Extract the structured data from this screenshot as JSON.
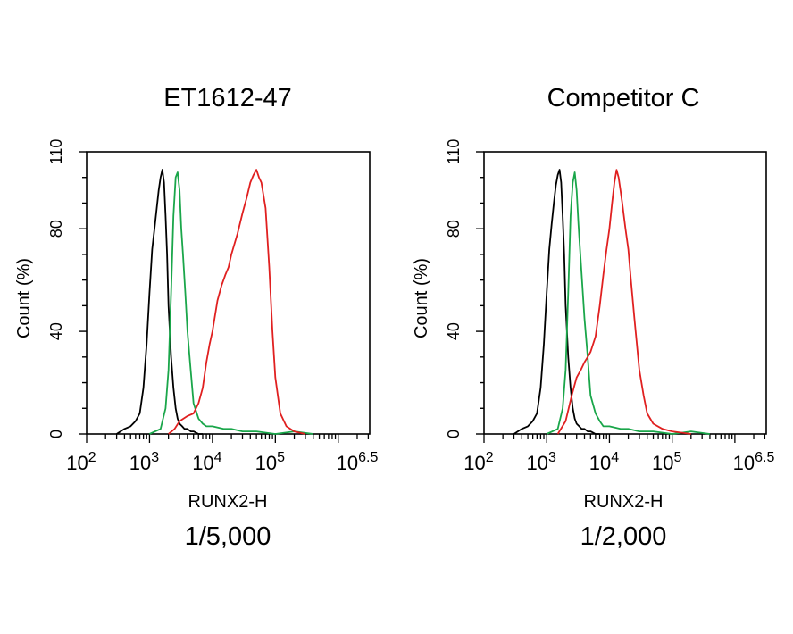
{
  "chart_data": [
    {
      "type": "line",
      "title": "ET1612-47",
      "xlabel": "RUNX2-H",
      "ylabel": "Count (%)",
      "caption": "1/5,000",
      "x_scale": "log10",
      "xlim": [
        100,
        3162278
      ],
      "ylim": [
        0,
        110
      ],
      "x_ticks": [
        {
          "value": 100,
          "base": "10",
          "exp": "2"
        },
        {
          "value": 1000,
          "base": "10",
          "exp": "3"
        },
        {
          "value": 10000,
          "base": "10",
          "exp": "4"
        },
        {
          "value": 100000,
          "base": "10",
          "exp": "5"
        },
        {
          "value": 3162278,
          "base": "10",
          "exp": "6.5"
        }
      ],
      "y_ticks": [
        0,
        40,
        80,
        110
      ],
      "series": [
        {
          "color": "#000000",
          "x": [
            300,
            400,
            500,
            600,
            700,
            800,
            900,
            1000,
            1100,
            1200,
            1300,
            1400,
            1500,
            1600,
            1700,
            1800,
            1900,
            2000,
            2200,
            2400,
            2600,
            2800,
            3000,
            3300,
            3600,
            4000,
            4500,
            5000,
            6000,
            7000
          ],
          "y": [
            0,
            2,
            3,
            5,
            8,
            18,
            35,
            55,
            72,
            80,
            88,
            95,
            100,
            103,
            98,
            85,
            70,
            50,
            30,
            18,
            10,
            6,
            4,
            3,
            2,
            2,
            1,
            1,
            0,
            0
          ]
        },
        {
          "color": "#1aa64a",
          "x": [
            1000,
            1500,
            1800,
            2000,
            2200,
            2400,
            2600,
            2800,
            3000,
            3200,
            3400,
            3700,
            4000,
            4500,
            5000,
            6000,
            7000,
            8000,
            10000,
            15000,
            20000,
            30000,
            50000,
            100000,
            200000,
            400000
          ],
          "y": [
            0,
            2,
            10,
            25,
            55,
            85,
            100,
            102,
            95,
            80,
            70,
            55,
            40,
            25,
            12,
            6,
            4,
            3,
            3,
            2,
            2,
            1,
            1,
            0,
            1,
            0
          ]
        },
        {
          "color": "#e02020",
          "x": [
            2000,
            2500,
            3000,
            4000,
            5000,
            6000,
            7000,
            8000,
            9000,
            10000,
            12000,
            14000,
            16000,
            18000,
            20000,
            25000,
            30000,
            35000,
            40000,
            45000,
            50000,
            55000,
            60000,
            70000,
            80000,
            90000,
            100000,
            120000,
            150000,
            200000,
            300000
          ],
          "y": [
            0,
            2,
            5,
            7,
            8,
            12,
            18,
            28,
            35,
            40,
            52,
            58,
            62,
            65,
            70,
            78,
            86,
            92,
            98,
            101,
            103,
            100,
            98,
            88,
            65,
            40,
            22,
            8,
            3,
            1,
            0
          ]
        }
      ]
    },
    {
      "type": "line",
      "title": "Competitor C",
      "xlabel": "RUNX2-H",
      "ylabel": "Count (%)",
      "caption": "1/2,000",
      "x_scale": "log10",
      "xlim": [
        100,
        3162278
      ],
      "ylim": [
        0,
        110
      ],
      "x_ticks": [
        {
          "value": 100,
          "base": "10",
          "exp": "2"
        },
        {
          "value": 1000,
          "base": "10",
          "exp": "3"
        },
        {
          "value": 10000,
          "base": "10",
          "exp": "4"
        },
        {
          "value": 100000,
          "base": "10",
          "exp": "5"
        },
        {
          "value": 3162278,
          "base": "10",
          "exp": "6.5"
        }
      ],
      "y_ticks": [
        0,
        40,
        80,
        110
      ],
      "series": [
        {
          "color": "#000000",
          "x": [
            300,
            400,
            500,
            600,
            700,
            800,
            900,
            1000,
            1100,
            1200,
            1300,
            1400,
            1500,
            1600,
            1700,
            1800,
            1900,
            2000,
            2200,
            2400,
            2600,
            2800,
            3000,
            3300,
            3600,
            4000,
            4500,
            5000,
            6000,
            7000
          ],
          "y": [
            0,
            2,
            3,
            5,
            8,
            18,
            35,
            55,
            72,
            82,
            90,
            97,
            101,
            103,
            98,
            85,
            70,
            50,
            30,
            18,
            10,
            6,
            4,
            3,
            2,
            2,
            1,
            1,
            0,
            0
          ]
        },
        {
          "color": "#1aa64a",
          "x": [
            1000,
            1500,
            1800,
            2000,
            2200,
            2400,
            2600,
            2800,
            3000,
            3200,
            3400,
            3700,
            4000,
            4500,
            5000,
            6000,
            7000,
            8000,
            10000,
            15000,
            20000,
            30000,
            50000,
            100000,
            200000,
            400000
          ],
          "y": [
            0,
            2,
            10,
            25,
            55,
            85,
            98,
            102,
            95,
            82,
            72,
            58,
            45,
            30,
            15,
            8,
            5,
            3,
            3,
            2,
            2,
            1,
            1,
            0,
            1,
            0
          ]
        },
        {
          "color": "#e02020",
          "x": [
            1500,
            2000,
            2500,
            3000,
            3500,
            4000,
            4500,
            5000,
            6000,
            7000,
            8000,
            9000,
            10000,
            11000,
            12000,
            13000,
            14000,
            15000,
            16000,
            18000,
            20000,
            22000,
            25000,
            30000,
            35000,
            40000,
            50000,
            70000,
            100000,
            200000
          ],
          "y": [
            0,
            5,
            15,
            22,
            25,
            28,
            30,
            32,
            38,
            50,
            62,
            72,
            80,
            90,
            98,
            103,
            100,
            95,
            90,
            80,
            72,
            60,
            45,
            25,
            15,
            8,
            4,
            2,
            1,
            0
          ]
        }
      ]
    }
  ]
}
